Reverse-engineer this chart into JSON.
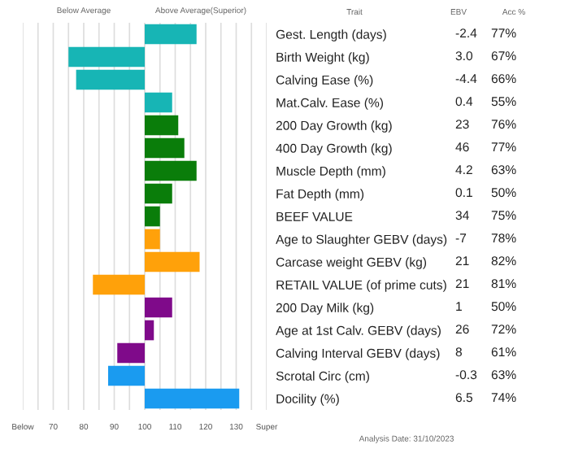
{
  "chart_data": {
    "type": "bar",
    "orientation": "horizontal",
    "categories": [
      "Gest. Length (days)",
      "Birth Weight (kg)",
      "Calving Ease (%)",
      "Mat.Calv. Ease (%)",
      "200 Day Growth (kg)",
      "400 Day Growth (kg)",
      "Muscle Depth (mm)",
      "Fat Depth (mm)",
      "BEEF VALUE",
      "Age to Slaughter GEBV (days)",
      "Carcase weight GEBV (kg)",
      "RETAIL VALUE (of prime cuts)",
      "200 Day Milk (kg)",
      "Age at 1st Calv. GEBV (days)",
      "Calving Interval GEBV (days)",
      "Scrotal Circ (cm)",
      "Docility (%)"
    ],
    "base": [
      100,
      100,
      100,
      100,
      100,
      100,
      100,
      100,
      100,
      100,
      100,
      100,
      100,
      100,
      100,
      100,
      100
    ],
    "values": [
      17,
      -25,
      -22.5,
      9,
      11,
      13,
      17,
      9,
      5,
      5,
      18,
      -17,
      9,
      3,
      -9,
      -12,
      31
    ],
    "colors": [
      "#17b5b5",
      "#17b5b5",
      "#17b5b5",
      "#17b5b5",
      "#0a7d0a",
      "#0a7d0a",
      "#0a7d0a",
      "#0a7d0a",
      "#0a7d0a",
      "#ffa10a",
      "#ffa10a",
      "#ffa10a",
      "#7f0a8a",
      "#7f0a8a",
      "#7f0a8a",
      "#1a9bf0",
      "#1a9bf0"
    ],
    "xlim": [
      60,
      140
    ],
    "xticks": [
      {
        "value": 60,
        "label": "Below"
      },
      {
        "value": 65,
        "label": null
      },
      70,
      {
        "value": 75,
        "label": null
      },
      80,
      {
        "value": 85,
        "label": null
      },
      90,
      {
        "value": 95,
        "label": null
      },
      100,
      {
        "value": 105,
        "label": null
      },
      110,
      {
        "value": 115,
        "label": null
      },
      120,
      {
        "value": 125,
        "label": null
      },
      130,
      {
        "value": 135,
        "label": null
      },
      {
        "value": 140,
        "label": "Super"
      }
    ],
    "grid": "x",
    "annotations": [
      "Below Average",
      "Above Average(Superior)",
      "Trait",
      "EBV",
      "Acc %",
      "-2.4",
      "3.0",
      "-4.4",
      "0.4",
      "23",
      "46",
      "4.2",
      "0.1",
      "34",
      "-7",
      "21",
      "21",
      "1",
      "26",
      "8",
      "-0.3",
      "6.5",
      "77%",
      "67%",
      "66%",
      "55%",
      "76%",
      "77%",
      "63%",
      "50%",
      "75%",
      "78%",
      "82%",
      "81%",
      "50%",
      "72%",
      "61%",
      "63%",
      "74%",
      "Analysis Date: 31/10/2023"
    ]
  }
}
